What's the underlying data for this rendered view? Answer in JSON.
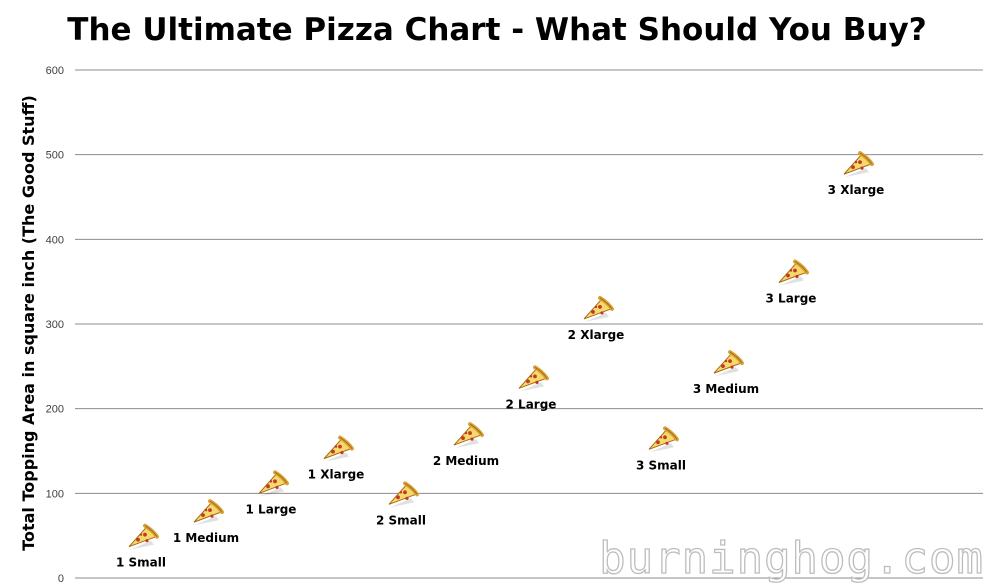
{
  "watermark": "burninghog.com",
  "colors": {
    "gridline": "#8c8c8c",
    "crust": "#d9a43a",
    "crust_dark": "#a86a12",
    "cheese": "#f6d96b",
    "pepperoni": "#c0392b"
  },
  "marker_icon": "pizza-slice-icon",
  "chart_data": {
    "type": "scatter",
    "title": "The Ultimate Pizza Chart - What Should You Buy?",
    "xlabel": "",
    "ylabel": "Total Topping Area  in square inch (The Good Stuff)",
    "ylim": [
      0,
      600
    ],
    "yticks": [
      0,
      100,
      200,
      300,
      400,
      500,
      600
    ],
    "grid": true,
    "legend": "none",
    "points": [
      {
        "label": "1 Small",
        "y": 50
      },
      {
        "label": "1 Medium",
        "y": 79
      },
      {
        "label": "1 Large",
        "y": 113
      },
      {
        "label": "1 Xlarge",
        "y": 154
      },
      {
        "label": "2 Small",
        "y": 100
      },
      {
        "label": "2 Medium",
        "y": 170
      },
      {
        "label": "2 Large",
        "y": 237
      },
      {
        "label": "2 Xlarge",
        "y": 319
      },
      {
        "label": "3 Small",
        "y": 165
      },
      {
        "label": "3 Medium",
        "y": 255
      },
      {
        "label": "3 Large",
        "y": 362
      },
      {
        "label": "3 Xlarge",
        "y": 490
      }
    ]
  }
}
